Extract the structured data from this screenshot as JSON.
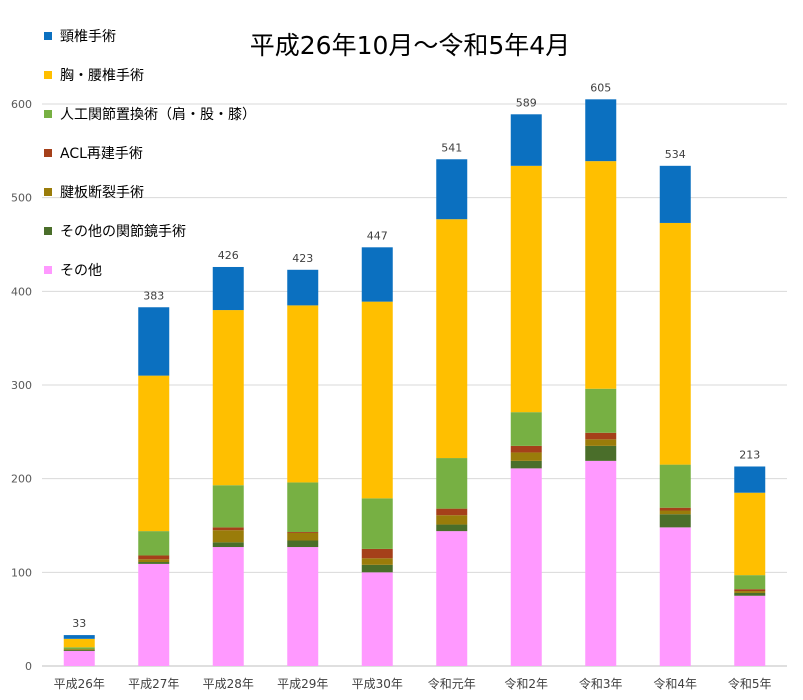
{
  "chart_data": {
    "type": "bar",
    "stacked": true,
    "title": "平成26年10月～令和5年4月",
    "xlabel": "",
    "ylabel": "",
    "ylim": [
      0,
      640
    ],
    "yticks": [
      0,
      100,
      200,
      300,
      400,
      500,
      600
    ],
    "grid": true,
    "legend_position": "top-left",
    "categories": [
      "平成26年",
      "平成27年",
      "平成28年",
      "平成29年",
      "平成30年",
      "令和元年",
      "令和2年",
      "令和3年",
      "令和4年",
      "令和5年"
    ],
    "totals": [
      33,
      383,
      426,
      423,
      447,
      541,
      589,
      605,
      534,
      213
    ],
    "series": [
      {
        "name": "その他",
        "color": "#ff99ff",
        "values": [
          16,
          109,
          127,
          127,
          100,
          144,
          211,
          219,
          148,
          75
        ]
      },
      {
        "name": "その他の関節鏡手術",
        "color": "#4a6e2a",
        "values": [
          1,
          2,
          5,
          7,
          8,
          7,
          8,
          16,
          14,
          3
        ]
      },
      {
        "name": "腱板断裂手術",
        "color": "#9a7c0a",
        "values": [
          1,
          3,
          13,
          8,
          7,
          10,
          9,
          7,
          4,
          2
        ]
      },
      {
        "name": "ACL再建手術",
        "color": "#a5401a",
        "values": [
          0,
          4,
          3,
          1,
          10,
          7,
          7,
          7,
          3,
          2
        ]
      },
      {
        "name": "人工関節置換術（肩・股・膝）",
        "color": "#77b043",
        "values": [
          2,
          26,
          45,
          53,
          54,
          54,
          36,
          47,
          46,
          15
        ]
      },
      {
        "name": "胸・腰椎手術",
        "color": "#ffbf00",
        "values": [
          9,
          166,
          187,
          189,
          210,
          255,
          263,
          243,
          258,
          88
        ]
      },
      {
        "name": "頸椎手術",
        "color": "#0b70c0",
        "values": [
          4,
          73,
          46,
          38,
          58,
          64,
          55,
          66,
          61,
          28
        ]
      }
    ]
  }
}
